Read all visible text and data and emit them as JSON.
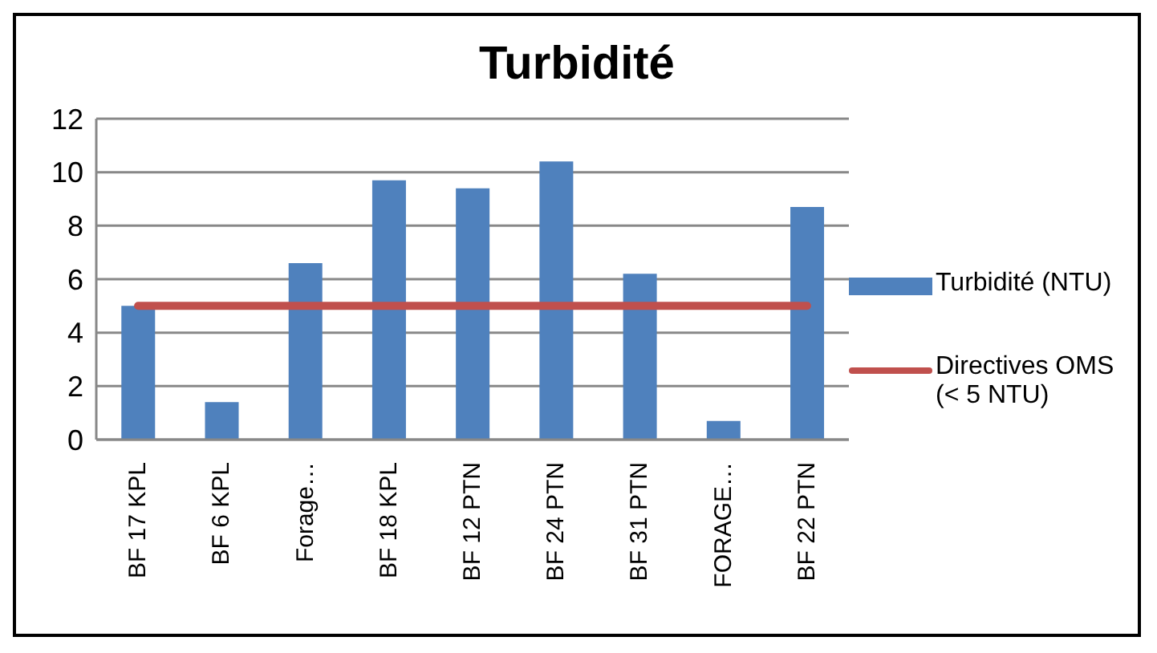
{
  "chart_data": {
    "type": "bar",
    "title": "Turbidité",
    "categories": [
      "BF 17 KPL",
      "BF 6 KPL",
      "Forage…",
      "BF 18 KPL",
      "BF 12 PTN",
      "BF 24 PTN",
      "BF 31 PTN",
      "FORAGE…",
      "BF 22 PTN"
    ],
    "series": [
      {
        "name": "Turbidité (NTU)",
        "color": "#4f81bd",
        "values": [
          5.0,
          1.4,
          6.6,
          9.7,
          9.4,
          10.4,
          6.2,
          0.7,
          8.7
        ]
      },
      {
        "name": "Directives OMS (< 5 NTU)",
        "type": "line",
        "color": "#c0504d",
        "values": [
          5,
          5,
          5,
          5,
          5,
          5,
          5,
          5,
          5
        ]
      }
    ],
    "ylim": [
      0,
      12
    ],
    "yticks": [
      0,
      2,
      4,
      6,
      8,
      10,
      12
    ],
    "grid": "y",
    "legend": "right",
    "marker": "none"
  }
}
